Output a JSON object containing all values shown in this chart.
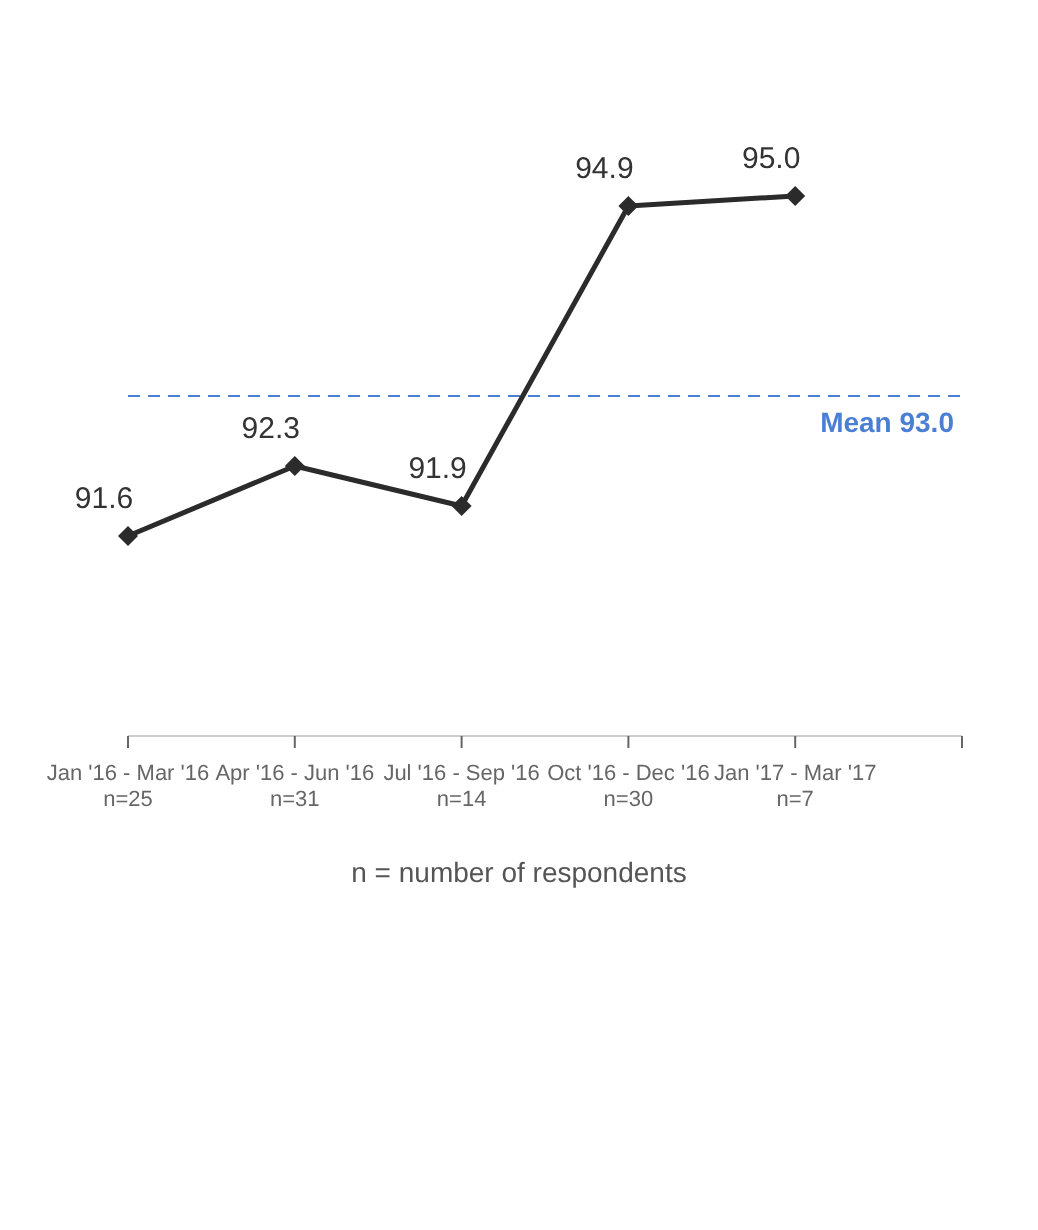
{
  "chart_data": {
    "type": "line",
    "categories": [
      "Jan '16 - Mar '16\nn=25",
      "Apr '16 - Jun '16\nn=31",
      "Jul '16 - Sep '16\nn=14",
      "Oct '16 - Dec '16\nn=30",
      "Jan '17 - Mar '17\nn=7",
      null
    ],
    "series": [
      {
        "color": "#2b2b2b",
        "values": [
          91.6,
          92.3,
          91.9,
          94.9,
          95.0,
          null
        ],
        "value_labels": [
          "91.6",
          "92.3",
          "91.9",
          "94.9",
          "95.0",
          null
        ]
      }
    ],
    "marker": "diamond",
    "line_style": "solid",
    "tick_labels": "x",
    "ref_lines": [
      {
        "axis": "y",
        "value": 93.0,
        "label": "Mean 93.0",
        "color": "#4a7fd4",
        "line_style": "dashed"
      }
    ],
    "annotations": [
      "n = number of respondents"
    ]
  }
}
